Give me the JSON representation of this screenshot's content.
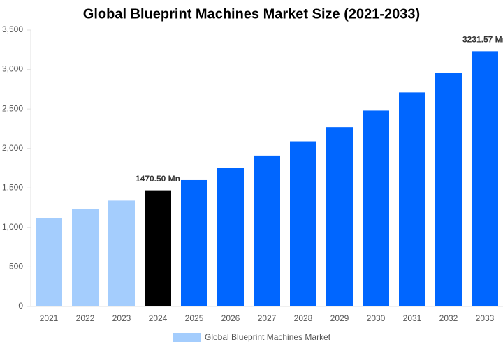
{
  "chart_data": {
    "type": "bar",
    "title": "Global Blueprint Machines Market Size (2021-2033)",
    "categories": [
      "2021",
      "2022",
      "2023",
      "2024",
      "2025",
      "2026",
      "2027",
      "2028",
      "2029",
      "2030",
      "2031",
      "2032",
      "2033"
    ],
    "series": [
      {
        "name": "Global Blueprint Machines Market",
        "color": "#a4cdfd",
        "values": [
          1120,
          1230,
          1340,
          1470.5,
          1600,
          1750,
          1910,
          2090,
          2270,
          2480,
          2710,
          2960,
          3231.57
        ],
        "value_labels": [
          null,
          null,
          null,
          "1470.50 Mn",
          null,
          null,
          null,
          null,
          null,
          null,
          null,
          null,
          "3231.57 Mn"
        ],
        "bar_colors": [
          "#a4cdfd",
          "#a4cdfd",
          "#a4cdfd",
          "#000000",
          "#0066ff",
          "#0066ff",
          "#0066ff",
          "#0066ff",
          "#0066ff",
          "#0066ff",
          "#0066ff",
          "#0066ff",
          "#0066ff"
        ]
      }
    ],
    "ylim": [
      0,
      3500
    ],
    "yticks": [
      0,
      500,
      {
        "value": 1000,
        "label": "1,000"
      },
      {
        "value": 1500,
        "label": "1,500"
      },
      {
        "value": 2000,
        "label": "2,000"
      },
      {
        "value": 2500,
        "label": "2,500"
      },
      {
        "value": 3000,
        "label": "3,000"
      },
      {
        "value": 3500,
        "label": "3,500"
      }
    ],
    "grid": false
  }
}
